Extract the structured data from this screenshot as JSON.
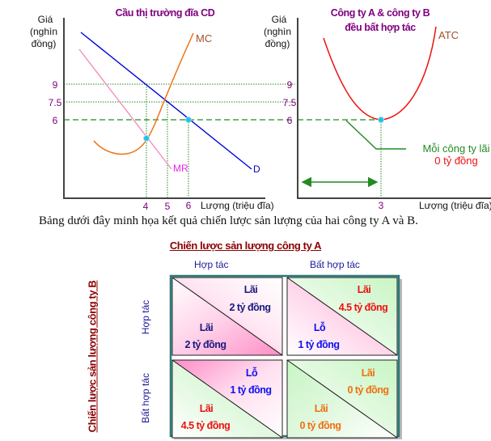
{
  "chart_left": {
    "title": "Cầu thị trường đĩa CD",
    "ylabel": [
      "Giá",
      "(nghìn",
      "đồng)"
    ],
    "xlabel": "Lượng (triệu đĩa)",
    "yticks": [
      "9",
      "7.5",
      "6"
    ],
    "xticks": [
      "4",
      "5",
      "6"
    ],
    "curves": {
      "mc": "MC",
      "mr": "MR",
      "d": "D"
    }
  },
  "chart_right": {
    "title_line1": "Công ty A & công ty B",
    "title_line2": "đều bất hợp tác",
    "ylabel": [
      "Giá",
      "(nghìn",
      "đồng)"
    ],
    "xlabel": "Lượng (triệu đĩa)",
    "yticks": [
      "9",
      "7.5",
      "6"
    ],
    "xticks": [
      "3"
    ],
    "curves": {
      "atc": "ATC"
    },
    "annotation_line1": "Mỗi công ty lãi",
    "annotation_line2": "0 tỷ đồng"
  },
  "caption": "Bảng dưới đây minh họa kết quả chiến lược sản lượng của hai công ty A và B.",
  "matrix": {
    "title_a": "Chiến lược sản lượng công ty A",
    "title_b": "Chiến lược sản lượng công ty B",
    "cols": [
      "Hợp tác",
      "Bất hợp tác"
    ],
    "rows": [
      "Hợp tác",
      "Bất hợp tác"
    ],
    "cells": [
      {
        "a_label": "Lãi",
        "a_value": "2 tỷ đồng",
        "b_label": "Lãi",
        "b_value": "2 tỷ đồng"
      },
      {
        "a_label": "Lãi",
        "a_value": "4.5 tỷ đồng",
        "b_label": "Lỗ",
        "b_value": "1 tỷ đồng"
      },
      {
        "a_label": "Lỗ",
        "a_value": "1 tỷ đồng",
        "b_label": "Lãi",
        "b_value": "4.5 tỷ đồng"
      },
      {
        "a_label": "Lãi",
        "a_value": "0 tỷ đồng",
        "b_label": "Lãi",
        "b_value": "0 tỷ đồng"
      }
    ]
  },
  "colors": {
    "title": "#800080",
    "tick": "#800080",
    "demand": "#0000dd",
    "mr": "#f58cc0",
    "mc": "#f07010",
    "atc": "#ee1111",
    "grid": "#228b22",
    "point": "#22c0e8",
    "pink": "#ff8cc6",
    "green": "#c8f5c4",
    "navy": "#1a1a80",
    "blue": "#1111ee",
    "red": "#ee1111",
    "orange": "#f07010"
  }
}
